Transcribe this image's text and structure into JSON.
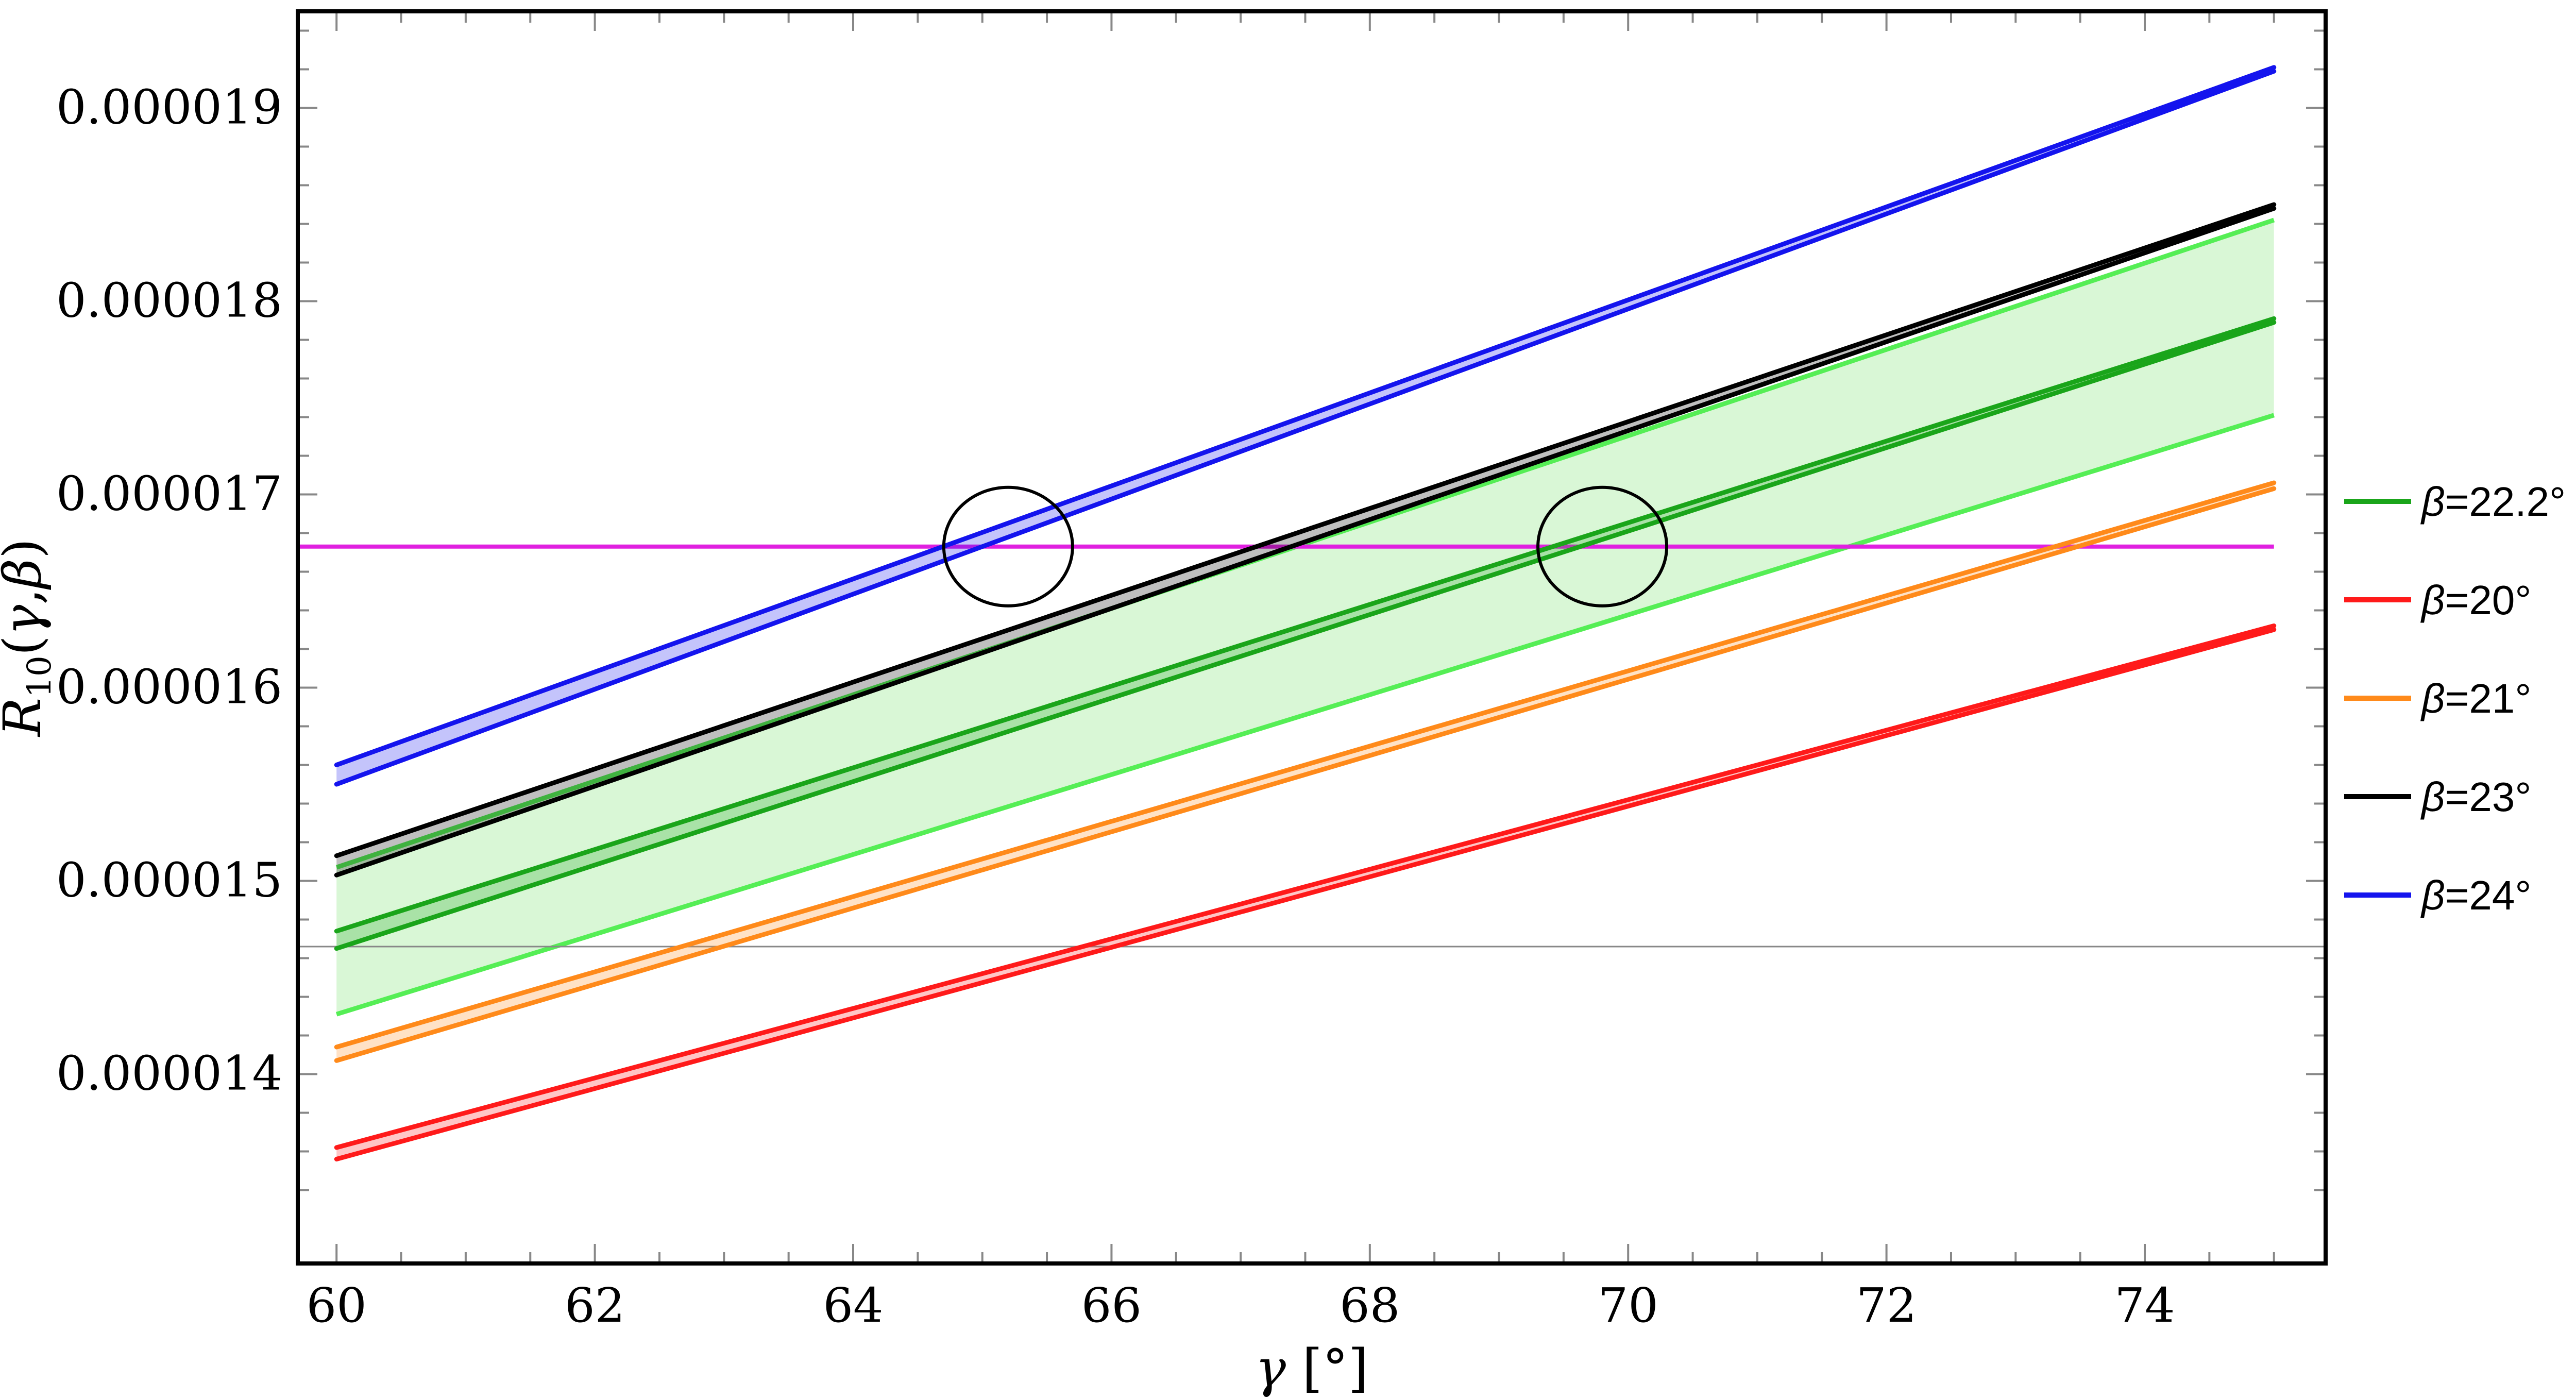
{
  "chart_data": {
    "type": "line",
    "xlabel": "γ [°]",
    "ylabel": "R10(γ,β)",
    "xlim": [
      59.7,
      75.4
    ],
    "ylim": [
      1.302e-05,
      1.95e-05
    ],
    "xticks": [
      60,
      62,
      64,
      66,
      68,
      70,
      72,
      74
    ],
    "xtick_labels": [
      "60",
      "62",
      "64",
      "66",
      "68",
      "70",
      "72",
      "74"
    ],
    "yticks": [
      1.4e-05,
      1.5e-05,
      1.6e-05,
      1.7e-05,
      1.8e-05,
      1.9e-05
    ],
    "ytick_labels": [
      "0.000014",
      "0.000015",
      "0.000016",
      "0.000017",
      "0.000018",
      "0.000019"
    ],
    "grid": false,
    "legend_position": "right",
    "horizontal_lines": [
      {
        "y": 1.673e-05,
        "color": "#e020e0"
      },
      {
        "y": 1.466e-05,
        "color": "#888888"
      }
    ],
    "shaded_band": {
      "color": "#2ecc40",
      "fill": "#d9f7d6",
      "lower": [
        [
          60,
          1.431e-05
        ],
        [
          75,
          1.741e-05
        ]
      ],
      "upper": [
        [
          60,
          1.507e-05
        ],
        [
          75,
          1.842e-05
        ]
      ]
    },
    "series": [
      {
        "name": "β=22.2°",
        "color": "#1aa51a",
        "lines": [
          [
            [
              60,
              1.474e-05
            ],
            [
              75,
              1.791e-05
            ]
          ],
          [
            [
              60,
              1.465e-05
            ],
            [
              75,
              1.789e-05
            ]
          ]
        ]
      },
      {
        "name": "β=20°",
        "color": "#ff1a1a",
        "lines": [
          [
            [
              60,
              1.362e-05
            ],
            [
              75,
              1.632e-05
            ]
          ],
          [
            [
              60,
              1.356e-05
            ],
            [
              75,
              1.63e-05
            ]
          ]
        ]
      },
      {
        "name": "β=21°",
        "color": "#ff8a1a",
        "lines": [
          [
            [
              60,
              1.414e-05
            ],
            [
              75,
              1.706e-05
            ]
          ],
          [
            [
              60,
              1.407e-05
            ],
            [
              75,
              1.703e-05
            ]
          ]
        ]
      },
      {
        "name": "β=23°",
        "color": "#000000",
        "lines": [
          [
            [
              60,
              1.513e-05
            ],
            [
              75,
              1.85e-05
            ]
          ],
          [
            [
              60,
              1.503e-05
            ],
            [
              75,
              1.848e-05
            ]
          ]
        ]
      },
      {
        "name": "β=24°",
        "color": "#1414ee",
        "lines": [
          [
            [
              60,
              1.56e-05
            ],
            [
              75,
              1.921e-05
            ]
          ],
          [
            [
              60,
              1.55e-05
            ],
            [
              75,
              1.919e-05
            ]
          ]
        ]
      }
    ],
    "circles": [
      {
        "x": 65.2,
        "y": 1.673e-05
      },
      {
        "x": 69.8,
        "y": 1.673e-05
      }
    ]
  }
}
